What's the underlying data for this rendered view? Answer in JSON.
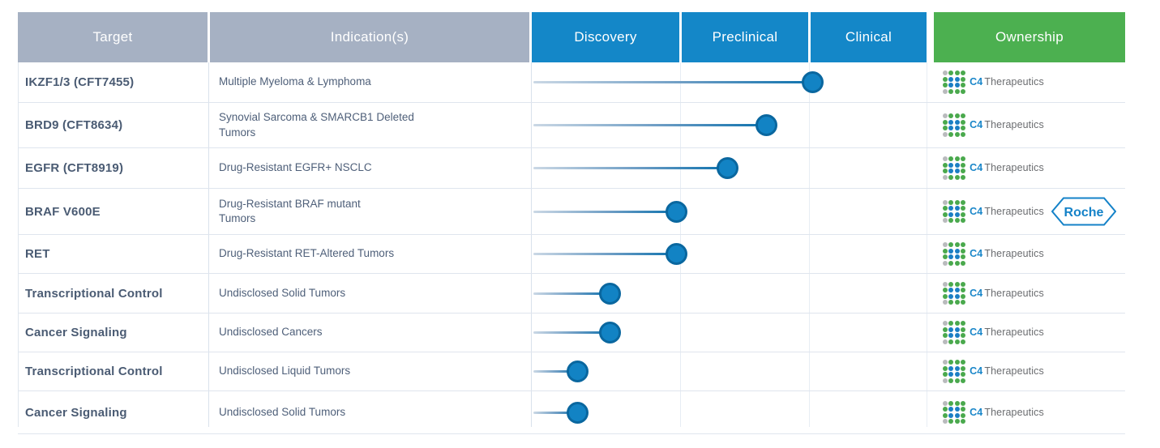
{
  "table": {
    "headers": {
      "target": "Target",
      "indication": "Indication(s)",
      "stages": [
        "Discovery",
        "Preclinical",
        "Clinical"
      ],
      "ownership": "Ownership"
    },
    "rows": [
      {
        "target": "IKZF1/3 (CFT7455)",
        "indication": "Multiple Myeloma & Lymphoma",
        "stage_value": 2.02,
        "nearest_stage": "Clinical (early)",
        "owners": [
          "c4"
        ]
      },
      {
        "target": "BRD9 (CFT8634)",
        "indication": "Synovial Sarcoma & SMARCB1 Deleted\nTumors",
        "stage_value": 1.67,
        "nearest_stage": "Preclinical (late)",
        "owners": [
          "c4"
        ]
      },
      {
        "target": "EGFR (CFT8919)",
        "indication": "Drug-Resistant EGFR+ NSCLC",
        "stage_value": 1.36,
        "nearest_stage": "Preclinical (mid)",
        "owners": [
          "c4"
        ]
      },
      {
        "target": "BRAF V600E",
        "indication": "Drug-Resistant BRAF mutant\nTumors",
        "stage_value": 0.98,
        "nearest_stage": "Discovery (completing)",
        "owners": [
          "c4",
          "roche"
        ]
      },
      {
        "target": "RET",
        "indication": "Drug-Resistant RET-Altered Tumors",
        "stage_value": 0.98,
        "nearest_stage": "Discovery (completing)",
        "owners": [
          "c4"
        ]
      },
      {
        "target": "Transcriptional Control",
        "indication": "Undisclosed Solid Tumors",
        "stage_value": 0.53,
        "nearest_stage": "Discovery (mid)",
        "owners": [
          "c4"
        ]
      },
      {
        "target": "Cancer Signaling",
        "indication": "Undisclosed Cancers",
        "stage_value": 0.53,
        "nearest_stage": "Discovery (mid)",
        "owners": [
          "c4"
        ]
      },
      {
        "target": "Transcriptional Control",
        "indication": "Undisclosed Liquid Tumors",
        "stage_value": 0.31,
        "nearest_stage": "Discovery (early)",
        "owners": [
          "c4"
        ]
      },
      {
        "target": "Cancer Signaling",
        "indication": "Undisclosed Solid Tumors",
        "stage_value": 0.31,
        "nearest_stage": "Discovery (early)",
        "owners": [
          "c4"
        ]
      }
    ]
  },
  "logos": {
    "c4": {
      "text_primary": "C4",
      "text_secondary": "Therapeutics"
    },
    "roche": {
      "text": "Roche"
    }
  },
  "colors": {
    "header_gray": "#a6b1c3",
    "header_blue": "#1487c8",
    "header_green": "#4cb050",
    "target_text": "#4a5b73",
    "indication_text": "#4e5f79",
    "bar_dark": "#0d72ae",
    "bar_light": "#cbd8e5",
    "dot_fill": "#1283c4",
    "dot_stroke": "#0a679f",
    "logo_green": "#4aa94d",
    "logo_blue": "#1b7fc4",
    "logo_gray": "#b9bbbd",
    "roche_blue": "#1482c8",
    "row_line": "#dfe5ee"
  },
  "chart_data": {
    "type": "table",
    "title": "Drug development pipeline",
    "columns": [
      "Target",
      "Indication(s)",
      "Discovery",
      "Preclinical",
      "Clinical",
      "Ownership"
    ],
    "stage_axis": {
      "Discovery": [
        0,
        1
      ],
      "Preclinical": [
        1,
        2
      ],
      "Clinical": [
        2,
        3
      ]
    },
    "rows": [
      {
        "target": "IKZF1/3 (CFT7455)",
        "indication": "Multiple Myeloma & Lymphoma",
        "stage_value": 2.02,
        "stage": "Clinical",
        "ownership": "C4 Therapeutics"
      },
      {
        "target": "BRD9 (CFT8634)",
        "indication": "Synovial Sarcoma & SMARCB1 Deleted Tumors",
        "stage_value": 1.67,
        "stage": "Preclinical",
        "ownership": "C4 Therapeutics"
      },
      {
        "target": "EGFR (CFT8919)",
        "indication": "Drug-Resistant EGFR+ NSCLC",
        "stage_value": 1.36,
        "stage": "Preclinical",
        "ownership": "C4 Therapeutics"
      },
      {
        "target": "BRAF V600E",
        "indication": "Drug-Resistant BRAF mutant Tumors",
        "stage_value": 0.98,
        "stage": "Discovery",
        "ownership": "C4 Therapeutics + Roche"
      },
      {
        "target": "RET",
        "indication": "Drug-Resistant RET-Altered Tumors",
        "stage_value": 0.98,
        "stage": "Discovery",
        "ownership": "C4 Therapeutics"
      },
      {
        "target": "Transcriptional Control",
        "indication": "Undisclosed Solid Tumors",
        "stage_value": 0.53,
        "stage": "Discovery",
        "ownership": "C4 Therapeutics"
      },
      {
        "target": "Cancer Signaling",
        "indication": "Undisclosed Cancers",
        "stage_value": 0.53,
        "stage": "Discovery",
        "ownership": "C4 Therapeutics"
      },
      {
        "target": "Transcriptional Control",
        "indication": "Undisclosed Liquid Tumors",
        "stage_value": 0.31,
        "stage": "Discovery",
        "ownership": "C4 Therapeutics"
      },
      {
        "target": "Cancer Signaling",
        "indication": "Undisclosed Solid Tumors",
        "stage_value": 0.31,
        "stage": "Discovery",
        "ownership": "C4 Therapeutics"
      }
    ]
  }
}
